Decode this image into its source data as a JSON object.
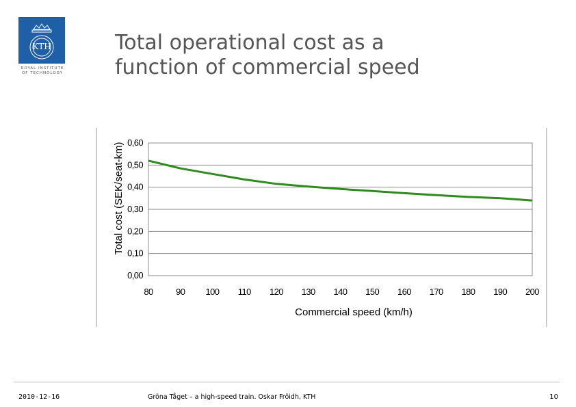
{
  "logo": {
    "text": "KTH",
    "caption_line1": "ROYAL INSTITUTE",
    "caption_line2": "OF TECHNOLOGY",
    "color": "#1f5fa8"
  },
  "slide": {
    "title_line1": "Total operational cost as a",
    "title_line2": "function of commercial speed"
  },
  "chart_data": {
    "type": "line",
    "title": "",
    "xlabel": "Commercial speed (km/h)",
    "ylabel": "Total cost (SEK/seat-km)",
    "x_ticks": [
      "80",
      "90",
      "100",
      "110",
      "120",
      "130",
      "140",
      "150",
      "160",
      "170",
      "180",
      "190",
      "200"
    ],
    "y_ticks": [
      "0,00",
      "0,10",
      "0,20",
      "0,30",
      "0,40",
      "0,50",
      "0,60"
    ],
    "xlim": [
      80,
      200
    ],
    "ylim": [
      0,
      0.6
    ],
    "grid": true,
    "series": [
      {
        "name": "Total cost",
        "color": "#2e8b1e",
        "x": [
          80,
          90,
          100,
          110,
          120,
          130,
          140,
          150,
          160,
          170,
          180,
          190,
          200
        ],
        "y": [
          0.52,
          0.485,
          0.46,
          0.435,
          0.415,
          0.403,
          0.392,
          0.383,
          0.373,
          0.364,
          0.356,
          0.35,
          0.34
        ]
      }
    ]
  },
  "footer": {
    "date": "2010-12-16",
    "caption": "Gröna Tåget – a high-speed train. Oskar Fröidh, KTH",
    "page": "10"
  }
}
